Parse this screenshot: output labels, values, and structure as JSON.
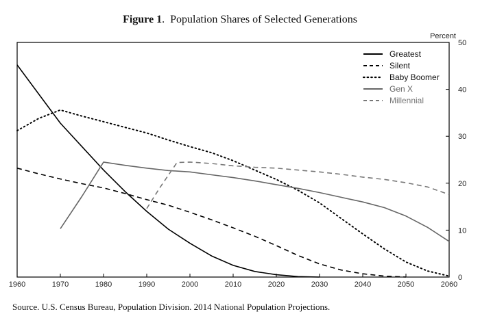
{
  "figure_label": "Figure 1",
  "title_text": "Population Shares of Selected Generations",
  "source": "Source.  U.S. Census Bureau, Population Division.  2014 National Population Projections.",
  "chart_data": {
    "type": "line",
    "ylabel": "Percent",
    "xlim": [
      1960,
      2060
    ],
    "ylim": [
      0,
      50
    ],
    "x_ticks": [
      1960,
      1970,
      1980,
      1990,
      2000,
      2010,
      2020,
      2030,
      2040,
      2050,
      2060
    ],
    "y_ticks": [
      0,
      10,
      20,
      30,
      40,
      50
    ],
    "y_axis_side": "right",
    "grid": false,
    "legend_position": "top-right",
    "series": [
      {
        "name": "Greatest",
        "color": "#000000",
        "dash": "solid",
        "points": [
          [
            1960,
            45.2
          ],
          [
            1965,
            39
          ],
          [
            1970,
            32.8
          ],
          [
            1975,
            27.8
          ],
          [
            1980,
            22.8
          ],
          [
            1985,
            18.2
          ],
          [
            1990,
            14
          ],
          [
            1995,
            10.2
          ],
          [
            2000,
            7.2
          ],
          [
            2005,
            4.5
          ],
          [
            2010,
            2.5
          ],
          [
            2015,
            1.2
          ],
          [
            2020,
            0.5
          ],
          [
            2025,
            0.1
          ],
          [
            2030,
            0
          ]
        ]
      },
      {
        "name": "Silent",
        "color": "#000000",
        "dash": "dashed",
        "points": [
          [
            1960,
            23.2
          ],
          [
            1965,
            22
          ],
          [
            1970,
            20.9
          ],
          [
            1975,
            19.9
          ],
          [
            1980,
            19
          ],
          [
            1985,
            17.8
          ],
          [
            1990,
            16.5
          ],
          [
            1995,
            15.3
          ],
          [
            2000,
            13.8
          ],
          [
            2005,
            12.2
          ],
          [
            2010,
            10.5
          ],
          [
            2015,
            8.7
          ],
          [
            2020,
            6.7
          ],
          [
            2025,
            4.6
          ],
          [
            2030,
            2.8
          ],
          [
            2035,
            1.5
          ],
          [
            2040,
            0.7
          ],
          [
            2045,
            0.2
          ],
          [
            2050,
            0
          ]
        ]
      },
      {
        "name": "Baby Boomer",
        "color": "#000000",
        "dash": "dotted",
        "points": [
          [
            1960,
            31.2
          ],
          [
            1965,
            33.8
          ],
          [
            1970,
            35.6
          ],
          [
            1975,
            34.3
          ],
          [
            1980,
            33.1
          ],
          [
            1985,
            31.9
          ],
          [
            1990,
            30.7
          ],
          [
            1995,
            29.2
          ],
          [
            2000,
            27.8
          ],
          [
            2005,
            26.5
          ],
          [
            2010,
            24.8
          ],
          [
            2015,
            22.8
          ],
          [
            2020,
            20.8
          ],
          [
            2025,
            18.5
          ],
          [
            2030,
            15.8
          ],
          [
            2035,
            12.5
          ],
          [
            2040,
            9.2
          ],
          [
            2045,
            6
          ],
          [
            2050,
            3.2
          ],
          [
            2055,
            1.3
          ],
          [
            2060,
            0.2
          ]
        ]
      },
      {
        "name": "Gen X",
        "color": "#666666",
        "dash": "solid",
        "points": [
          [
            1970,
            10.3
          ],
          [
            1975,
            17.2
          ],
          [
            1980,
            24.5
          ],
          [
            1985,
            23.8
          ],
          [
            1990,
            23.2
          ],
          [
            1995,
            22.7
          ],
          [
            2000,
            22.4
          ],
          [
            2005,
            21.8
          ],
          [
            2010,
            21.2
          ],
          [
            2015,
            20.5
          ],
          [
            2020,
            19.7
          ],
          [
            2025,
            18.9
          ],
          [
            2030,
            18
          ],
          [
            2035,
            17
          ],
          [
            2040,
            16
          ],
          [
            2045,
            14.8
          ],
          [
            2050,
            13
          ],
          [
            2055,
            10.6
          ],
          [
            2060,
            7.6
          ]
        ]
      },
      {
        "name": "Millennial",
        "color": "#777777",
        "dash": "dashed",
        "points": [
          [
            1990,
            14.6
          ],
          [
            1993,
            19
          ],
          [
            1997,
            24.4
          ],
          [
            2000,
            24.5
          ],
          [
            2005,
            24.2
          ],
          [
            2010,
            23.7
          ],
          [
            2015,
            23.4
          ],
          [
            2020,
            23.2
          ],
          [
            2025,
            22.8
          ],
          [
            2030,
            22.4
          ],
          [
            2035,
            21.9
          ],
          [
            2040,
            21.3
          ],
          [
            2045,
            20.8
          ],
          [
            2050,
            20.1
          ],
          [
            2055,
            19.2
          ],
          [
            2060,
            17.6
          ]
        ]
      }
    ]
  }
}
